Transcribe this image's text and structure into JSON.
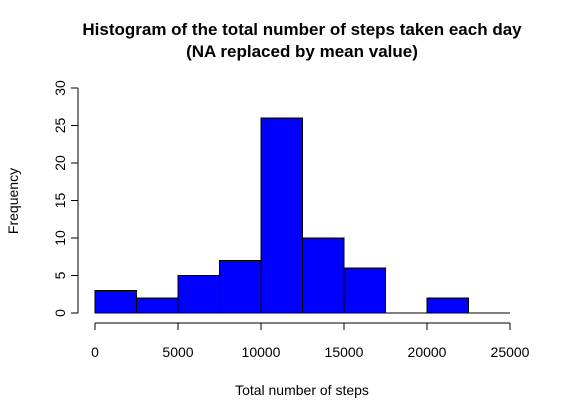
{
  "chart_data": {
    "type": "bar",
    "title_lines": [
      "Histogram of the total number of steps taken each day",
      "(NA replaced by mean value)"
    ],
    "xlabel": "Total number of steps",
    "ylabel": "Frequency",
    "bin_edges": [
      0,
      2500,
      5000,
      7500,
      10000,
      12500,
      15000,
      17500,
      20000,
      22500,
      25000
    ],
    "values": [
      3,
      2,
      5,
      7,
      26,
      10,
      6,
      0,
      2,
      0
    ],
    "xlim": [
      0,
      25000
    ],
    "ylim": [
      0,
      30
    ],
    "x_ticks": [
      "0",
      "5000",
      "10000",
      "15000",
      "20000",
      "25000"
    ],
    "y_ticks": [
      "0",
      "5",
      "10",
      "15",
      "20",
      "25",
      "30"
    ],
    "bar_color": "#0000ff",
    "grid": false,
    "legend": "none"
  }
}
